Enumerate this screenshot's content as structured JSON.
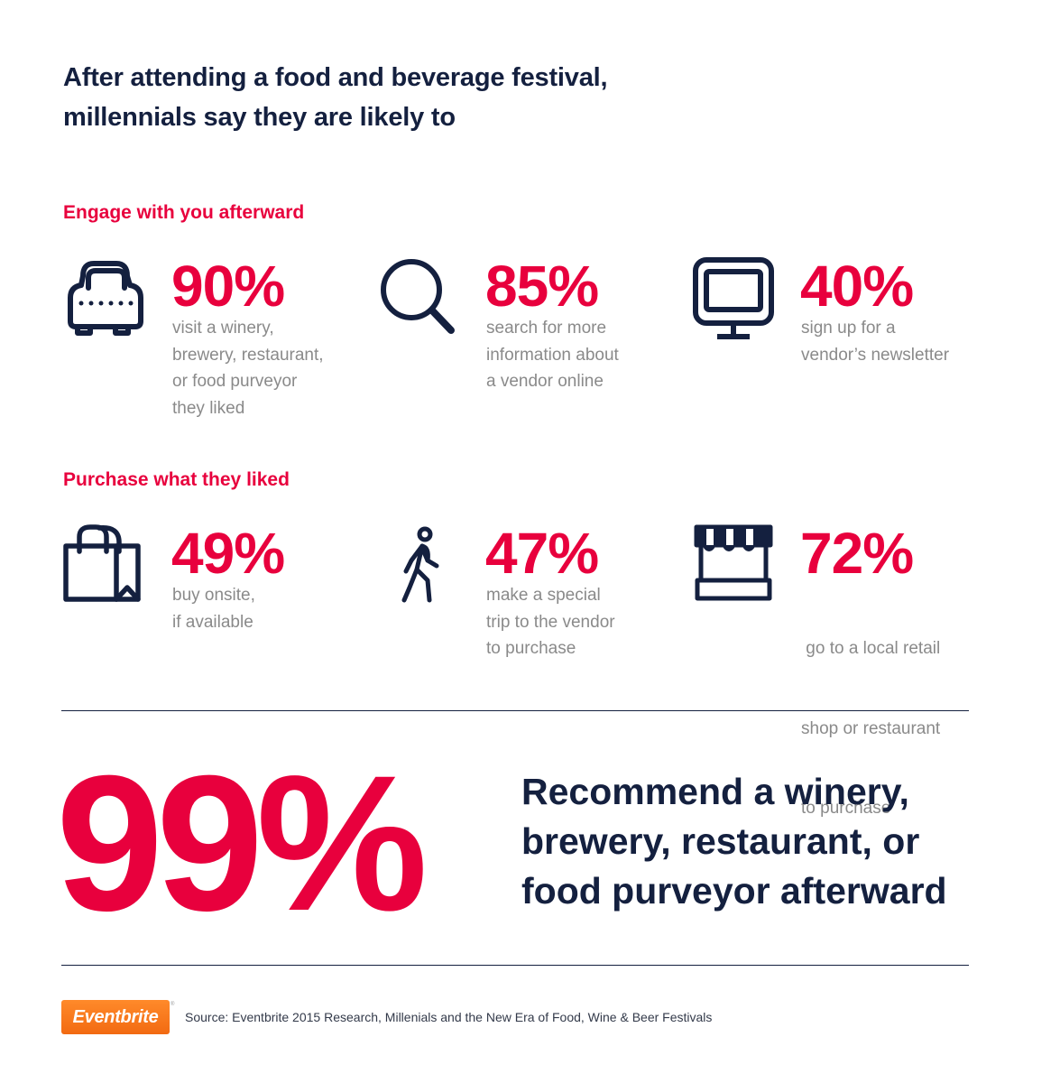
{
  "header": {
    "title_line1": "After attending a food and beverage festival,",
    "title_line2": "millennials say they are likely to"
  },
  "sections": [
    {
      "label": "Engage with you afterward",
      "stats": [
        {
          "icon": "car-icon",
          "value": "90%",
          "lines": [
            "visit a winery,",
            "brewery, restaurant,",
            "or food purveyor",
            "they liked"
          ]
        },
        {
          "icon": "search-icon",
          "value": "85%",
          "lines": [
            "search for more",
            "information about",
            "a vendor online"
          ]
        },
        {
          "icon": "monitor-icon",
          "value": "40%",
          "lines": [
            "sign up for a",
            "vendor’s newsletter"
          ]
        }
      ]
    },
    {
      "label": "Purchase what they liked",
      "stats": [
        {
          "icon": "shopping-bag-icon",
          "value": "49%",
          "lines": [
            "buy onsite,",
            "if available"
          ]
        },
        {
          "icon": "walking-person-icon",
          "value": "47%",
          "lines": [
            "make a special",
            "trip to the vendor",
            "to purchase"
          ]
        },
        {
          "icon": "storefront-icon",
          "value": "72%",
          "lines": [
            " go to a local retail",
            "shop or restaurant",
            "to purchase"
          ]
        }
      ]
    }
  ],
  "highlight": {
    "value": "99%",
    "line1": "Recommend a winery,",
    "line2": "brewery, restaurant, or",
    "line3": "food purveyor afterward"
  },
  "footer": {
    "logo_text": "Eventbrite",
    "logo_mark": "®",
    "source": "Source: Eventbrite 2015 Research, Millenials and the New Era of Food, Wine & Beer Festivals"
  },
  "colors": {
    "accent": "#e8003d",
    "navy": "#14203f",
    "gray_text": "#8a8a8a",
    "logo_orange": "#f26a12"
  }
}
